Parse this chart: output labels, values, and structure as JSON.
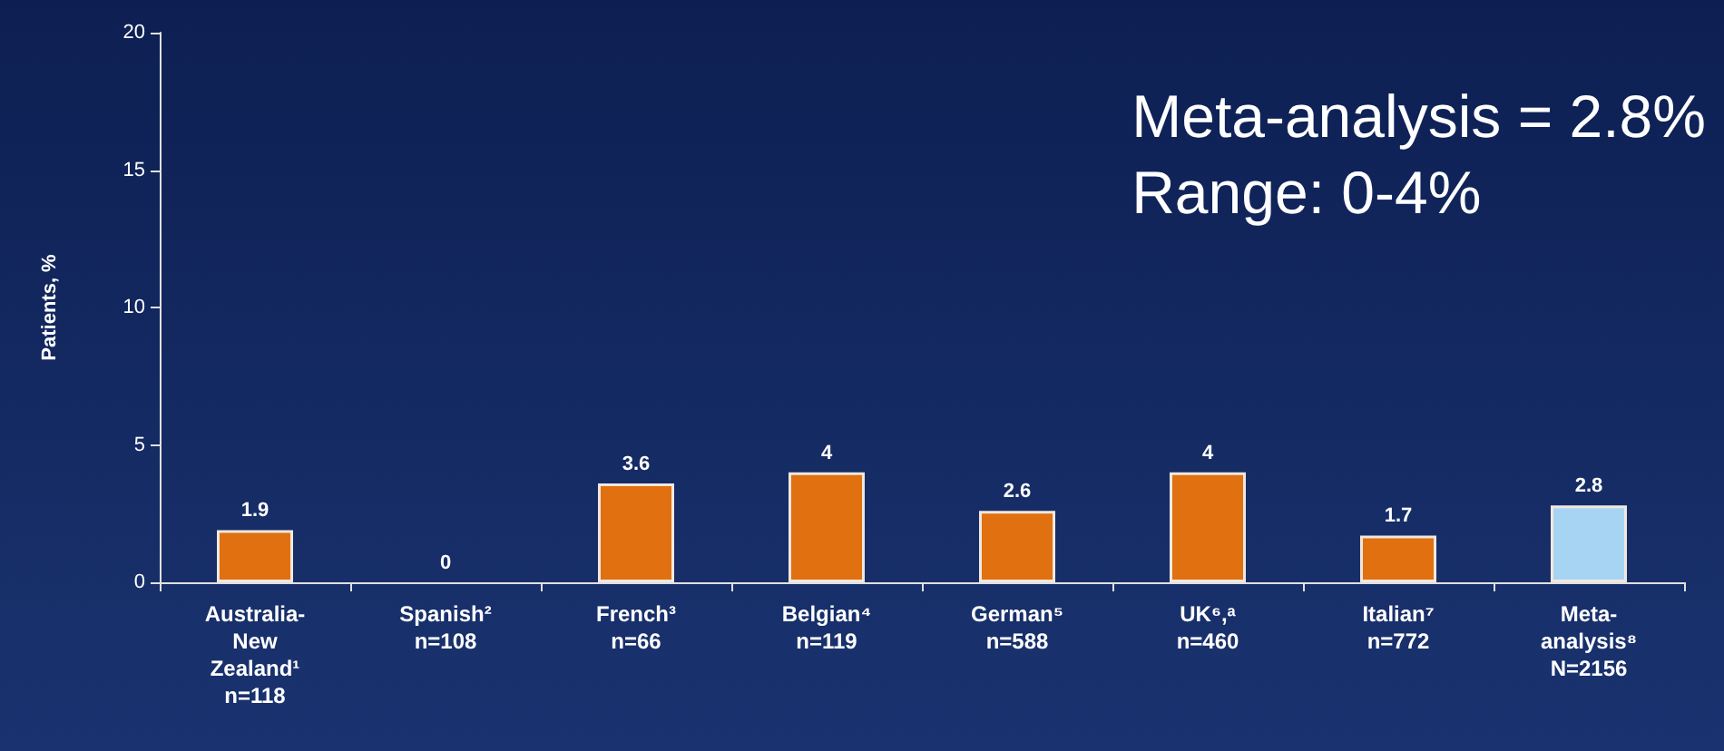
{
  "chart_data": {
    "type": "bar",
    "ylabel": "Patients, %",
    "categories": [
      "Australia-\nNew\nZealand¹\nn=118",
      "Spanish²\nn=108",
      "French³\nn=66",
      "Belgian⁴\nn=119",
      "German⁵\nn=588",
      "UK⁶,ᵃ\nn=460",
      "Italian⁷\nn=772",
      "Meta-\nanalysis⁸\nN=2156"
    ],
    "values": [
      1.9,
      0,
      3.6,
      4,
      2.6,
      4,
      1.7,
      2.8
    ],
    "colors": [
      "#e07010",
      "#e07010",
      "#e07010",
      "#e07010",
      "#e07010",
      "#e07010",
      "#e07010",
      "#a8d4f4"
    ],
    "ylim": [
      0,
      20
    ],
    "yticks": [
      0,
      5,
      10,
      15,
      20
    ],
    "grid": false,
    "data_labels": true,
    "annotations": [
      "Meta-analysis = 2.8%\nRange: 0-4%"
    ]
  }
}
